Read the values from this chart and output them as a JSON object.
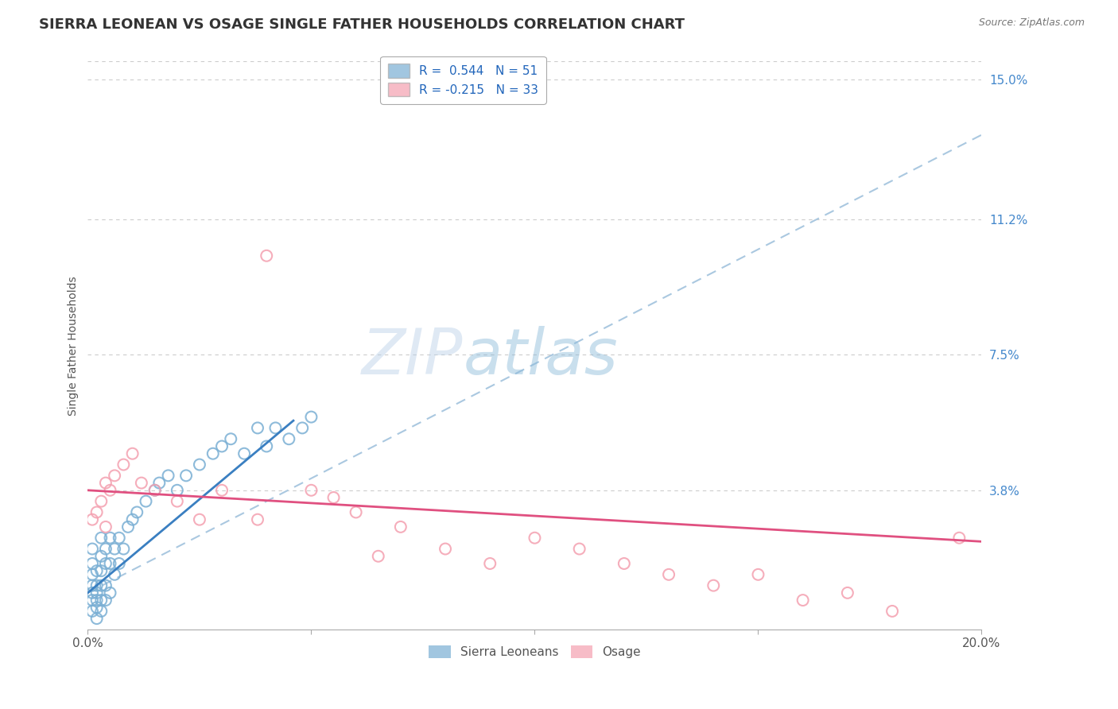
{
  "title": "SIERRA LEONEAN VS OSAGE SINGLE FATHER HOUSEHOLDS CORRELATION CHART",
  "source": "Source: ZipAtlas.com",
  "ylabel": "Single Father Households",
  "xlim": [
    0.0,
    0.2
  ],
  "ylim": [
    0.0,
    0.155
  ],
  "ytick_labels": [
    "15.0%",
    "11.2%",
    "7.5%",
    "3.8%"
  ],
  "ytick_positions": [
    0.15,
    0.112,
    0.075,
    0.038
  ],
  "legend_blue_label": "R =  0.544   N = 51",
  "legend_pink_label": "R = -0.215   N = 33",
  "blue_scatter_color": "#7aafd4",
  "pink_scatter_color": "#f4a0b0",
  "line_blue_color": "#3a7fc1",
  "line_pink_color": "#e05080",
  "dash_line_color": "#aac8e0",
  "grid_color": "#cccccc",
  "background_color": "#ffffff",
  "title_fontsize": 13,
  "axis_label_fontsize": 10,
  "tick_fontsize": 11,
  "legend_fontsize": 11,
  "blue_line_x": [
    0.0,
    0.046
  ],
  "blue_line_y": [
    0.01,
    0.057
  ],
  "dash_line_x": [
    0.0,
    0.2
  ],
  "dash_line_y": [
    0.01,
    0.135
  ],
  "pink_line_x": [
    0.0,
    0.2
  ],
  "pink_line_y": [
    0.038,
    0.024
  ],
  "sl_x": [
    0.001,
    0.001,
    0.001,
    0.001,
    0.001,
    0.001,
    0.001,
    0.002,
    0.002,
    0.002,
    0.002,
    0.002,
    0.002,
    0.003,
    0.003,
    0.003,
    0.003,
    0.003,
    0.003,
    0.004,
    0.004,
    0.004,
    0.004,
    0.005,
    0.005,
    0.005,
    0.006,
    0.006,
    0.007,
    0.007,
    0.008,
    0.009,
    0.01,
    0.011,
    0.013,
    0.015,
    0.016,
    0.018,
    0.02,
    0.022,
    0.025,
    0.028,
    0.03,
    0.032,
    0.035,
    0.038,
    0.04,
    0.042,
    0.045,
    0.048,
    0.05
  ],
  "sl_y": [
    0.005,
    0.008,
    0.01,
    0.012,
    0.015,
    0.018,
    0.022,
    0.003,
    0.006,
    0.008,
    0.01,
    0.012,
    0.016,
    0.005,
    0.008,
    0.012,
    0.016,
    0.02,
    0.025,
    0.008,
    0.012,
    0.018,
    0.022,
    0.01,
    0.018,
    0.025,
    0.015,
    0.022,
    0.018,
    0.025,
    0.022,
    0.028,
    0.03,
    0.032,
    0.035,
    0.038,
    0.04,
    0.042,
    0.038,
    0.042,
    0.045,
    0.048,
    0.05,
    0.052,
    0.048,
    0.055,
    0.05,
    0.055,
    0.052,
    0.055,
    0.058
  ],
  "os_x": [
    0.001,
    0.002,
    0.003,
    0.004,
    0.004,
    0.005,
    0.006,
    0.008,
    0.01,
    0.012,
    0.015,
    0.02,
    0.025,
    0.03,
    0.038,
    0.04,
    0.05,
    0.055,
    0.06,
    0.065,
    0.07,
    0.08,
    0.09,
    0.1,
    0.11,
    0.12,
    0.13,
    0.14,
    0.15,
    0.16,
    0.17,
    0.18,
    0.195
  ],
  "os_y": [
    0.03,
    0.032,
    0.035,
    0.028,
    0.04,
    0.038,
    0.042,
    0.045,
    0.048,
    0.04,
    0.038,
    0.035,
    0.03,
    0.038,
    0.03,
    0.102,
    0.038,
    0.036,
    0.032,
    0.02,
    0.028,
    0.022,
    0.018,
    0.025,
    0.022,
    0.018,
    0.015,
    0.012,
    0.015,
    0.008,
    0.01,
    0.005,
    0.025
  ]
}
